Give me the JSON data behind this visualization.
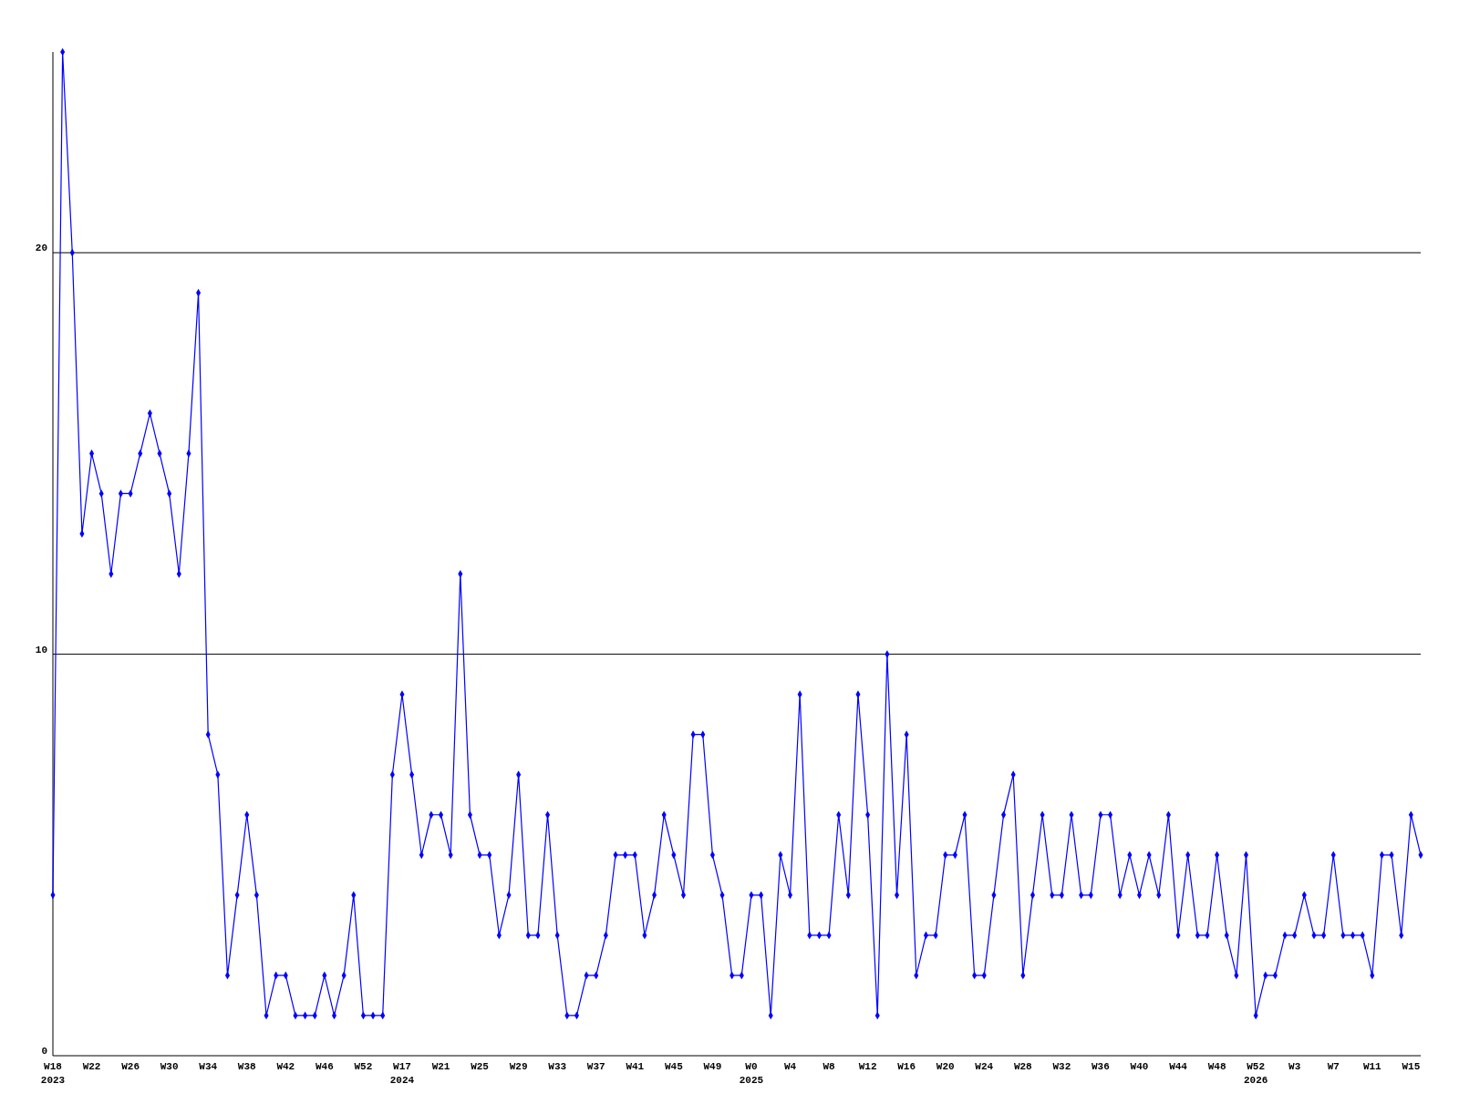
{
  "chart_data": {
    "type": "line",
    "categories": [
      "W18\n2023",
      null,
      null,
      null,
      "W22",
      null,
      null,
      null,
      "W26",
      null,
      null,
      null,
      "W30",
      null,
      null,
      null,
      "W34",
      null,
      null,
      null,
      "W38",
      null,
      null,
      null,
      "W42",
      null,
      null,
      null,
      "W46",
      null,
      null,
      null,
      "W52",
      null,
      null,
      null,
      "W17\n2024",
      null,
      null,
      null,
      "W21",
      null,
      null,
      null,
      "W25",
      null,
      null,
      null,
      "W29",
      null,
      null,
      null,
      "W33",
      null,
      null,
      null,
      "W37",
      null,
      null,
      null,
      "W41",
      null,
      null,
      null,
      "W45",
      null,
      null,
      null,
      "W49",
      null,
      null,
      null,
      "W0\n2025",
      null,
      null,
      null,
      "W4",
      null,
      null,
      null,
      "W8",
      null,
      null,
      null,
      "W12",
      null,
      null,
      null,
      "W16",
      null,
      null,
      null,
      "W20",
      null,
      null,
      null,
      "W24",
      null,
      null,
      null,
      "W28",
      null,
      null,
      null,
      "W32",
      null,
      null,
      null,
      "W36",
      null,
      null,
      null,
      "W40",
      null,
      null,
      null,
      "W44",
      null,
      null,
      null,
      "W48",
      null,
      null,
      null,
      "W52\n2026",
      null,
      null,
      null,
      "W3",
      null,
      null,
      null,
      "W7",
      null,
      null,
      null,
      "W11",
      null,
      null,
      null,
      "W15",
      null
    ],
    "series": [
      {
        "color": "#0000ff",
        "values": [
          4,
          25,
          20,
          13,
          15,
          14,
          12,
          14,
          14,
          15,
          16,
          15,
          14,
          12,
          15,
          19,
          8,
          7,
          2,
          4,
          6,
          4,
          1,
          2,
          2,
          1,
          1,
          1,
          2,
          1,
          2,
          4,
          1,
          1,
          1,
          7,
          9,
          7,
          5,
          6,
          6,
          5,
          12,
          6,
          5,
          5,
          3,
          4,
          7,
          3,
          3,
          6,
          3,
          1,
          1,
          2,
          2,
          3,
          5,
          5,
          5,
          3,
          4,
          6,
          5,
          4,
          8,
          8,
          5,
          4,
          2,
          2,
          4,
          4,
          1,
          5,
          4,
          9,
          3,
          3,
          3,
          6,
          4,
          9,
          6,
          1,
          10,
          4,
          8,
          2,
          3,
          3,
          5,
          5,
          6,
          2,
          2,
          4,
          6,
          7,
          2,
          4,
          6,
          4,
          4,
          6,
          4,
          4,
          6,
          6,
          4,
          5,
          4,
          5,
          4,
          6,
          3,
          5,
          3,
          3,
          5,
          3,
          2,
          5,
          1,
          2,
          2,
          3,
          3,
          4,
          3,
          3,
          5,
          3,
          3,
          3,
          2,
          5,
          5,
          3,
          6,
          5
        ]
      }
    ],
    "ylim": [
      0,
      25
    ],
    "yticks": [
      0,
      10,
      20
    ],
    "grid": "y",
    "marker": "diamond",
    "line_style": "solid"
  }
}
